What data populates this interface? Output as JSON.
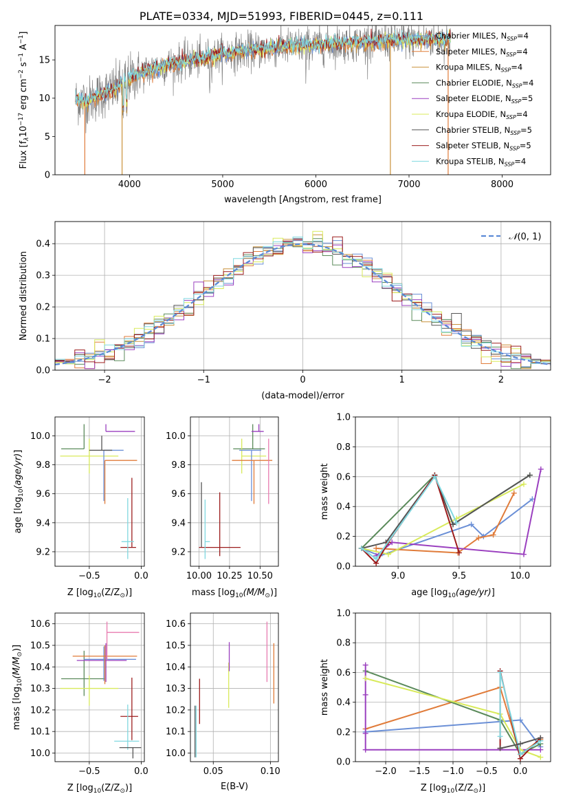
{
  "figure_title": "PLATE=0334, MJD=51993, FIBERID=0445, z=0.111",
  "colors": {
    "chabrier_miles": "#6a8fd6",
    "salpeter_miles": "#e07b39",
    "kroupa_miles": "#c9913a",
    "chabrier_elodie": "#5a8a5a",
    "salpeter_elodie": "#9a3fbf",
    "kroupa_elodie": "#d8ea5a",
    "chabrier_stelib": "#555555",
    "salpeter_stelib": "#9b1b1b",
    "kroupa_stelib": "#7fd8e0",
    "pink": "#e87bb0"
  },
  "chart_data": [
    {
      "id": "spectrum",
      "type": "line",
      "xlabel": "wavelength [Angstrom, rest frame]",
      "ylabel": "Flux [f",
      "xlim": [
        3200,
        8520
      ],
      "ylim": [
        0,
        19.5
      ],
      "xticks": [
        "4000",
        "5000",
        "6000",
        "7000",
        "8000"
      ],
      "yticks": [
        "0",
        "5",
        "10",
        "15"
      ],
      "legend_position": "right",
      "legend": [
        {
          "label": "Chabrier MILES, N",
          "nssp": "=4"
        },
        {
          "label": "Salpeter MILES, N",
          "nssp": "=4"
        },
        {
          "label": "Kroupa MILES, N",
          "nssp": "=4"
        },
        {
          "label": "Chabrier ELODIE, N",
          "nssp": "=4"
        },
        {
          "label": "Salpeter ELODIE, N",
          "nssp": "=5"
        },
        {
          "label": "Kroupa ELODIE, N",
          "nssp": "=4"
        },
        {
          "label": "Chabrier STELIB, N",
          "nssp": "=5"
        },
        {
          "label": "Salpeter STELIB, N",
          "nssp": "=5"
        },
        {
          "label": "Kroupa STELIB, N",
          "nssp": "=4"
        }
      ],
      "continuum": {
        "x": [
          3400,
          3550,
          3700,
          3850,
          4000,
          4200,
          4400,
          4600,
          4800,
          5000,
          5200,
          5400,
          5600,
          5800,
          6000,
          6200,
          6400,
          6600,
          6800,
          7000,
          7200,
          7400,
          7600,
          7800,
          8000,
          8200,
          8400,
          8500
        ],
        "y": [
          9.8,
          9.6,
          10.5,
          11.2,
          12.6,
          13.6,
          14.3,
          14.8,
          15.2,
          15.8,
          16.1,
          16.3,
          16.6,
          16.8,
          16.9,
          17.1,
          17.2,
          17.3,
          17.5,
          17.6,
          17.6,
          17.7,
          17.8,
          17.9,
          18.0,
          18.1,
          18.2,
          18.3
        ]
      },
      "data_range": [
        3420,
        7450
      ]
    },
    {
      "id": "residuals",
      "type": "histogram",
      "xlabel": "(data-model)/error",
      "ylabel": "Normed distribution",
      "xlim": [
        -2.5,
        2.5
      ],
      "ylim": [
        0,
        0.47
      ],
      "xticks": [
        "−2",
        "−1",
        "0",
        "1",
        "2"
      ],
      "yticks": [
        "0.0",
        "0.1",
        "0.2",
        "0.3",
        "0.4"
      ],
      "grid": true,
      "legend_position": "top-right",
      "reference": {
        "label": "(0, 1)",
        "mean": 0,
        "sigma": 1
      }
    },
    {
      "id": "age_vs_Z",
      "type": "errorbar",
      "xlabel": "Z [log",
      "ylabel": "age  [log",
      "xlim": [
        -0.83,
        0.03
      ],
      "ylim": [
        9.1,
        10.13
      ],
      "xticks": [
        "−0.5",
        "0.0"
      ],
      "yticks": [
        "9.2",
        "9.4",
        "9.6",
        "9.8",
        "10.0"
      ],
      "grid": true,
      "points": [
        {
          "x": -0.55,
          "y": 9.91,
          "xerr": [
            0.22,
            0.0
          ],
          "yerr": [
            0.0,
            0.17
          ],
          "color": "chabrier_elodie"
        },
        {
          "x": -0.34,
          "y": 10.03,
          "xerr": [
            0.0,
            0.28
          ],
          "yerr": [
            0.0,
            0.05
          ],
          "color": "salpeter_elodie"
        },
        {
          "x": -0.5,
          "y": 9.86,
          "xerr": [
            0.28,
            0.28
          ],
          "yerr": [
            0.12,
            0.12
          ],
          "color": "kroupa_elodie"
        },
        {
          "x": -0.36,
          "y": 9.9,
          "xerr": [
            0.0,
            0.19
          ],
          "yerr": [
            0.35,
            0.0
          ],
          "color": "chabrier_miles"
        },
        {
          "x": -0.35,
          "y": 9.83,
          "xerr": [
            0.0,
            0.31
          ],
          "yerr": [
            0.3,
            0.0
          ],
          "color": "salpeter_miles"
        },
        {
          "x": -0.38,
          "y": 9.9,
          "xerr": [
            0.12,
            0.1
          ],
          "yerr": [
            0.0,
            0.1
          ],
          "color": "chabrier_stelib"
        },
        {
          "x": -0.09,
          "y": 9.23,
          "xerr": [
            0.11,
            0.04
          ],
          "yerr": [
            0.0,
            0.48
          ],
          "color": "salpeter_stelib"
        },
        {
          "x": -0.13,
          "y": 9.27,
          "xerr": [
            0.06,
            0.06
          ],
          "yerr": [
            0.12,
            0.3
          ],
          "color": "kroupa_stelib"
        }
      ]
    },
    {
      "id": "age_vs_mass",
      "type": "errorbar",
      "xlabel": "mass [log",
      "ylabel": "",
      "xlim": [
        9.93,
        10.65
      ],
      "ylim": [
        9.1,
        10.13
      ],
      "xticks": [
        "10.00",
        "10.25",
        "10.50"
      ],
      "yticks": [
        "9.2",
        "9.4",
        "9.6",
        "9.8",
        "10.0"
      ],
      "grid": true,
      "points": [
        {
          "x": 10.44,
          "y": 9.91,
          "xerr": [
            0.16,
            0.1
          ],
          "yerr": [
            0.0,
            0.17
          ],
          "color": "chabrier_elodie"
        },
        {
          "x": 10.49,
          "y": 10.03,
          "xerr": [
            0.06,
            0.04
          ],
          "yerr": [
            0.0,
            0.05
          ],
          "color": "salpeter_elodie"
        },
        {
          "x": 10.35,
          "y": 9.86,
          "xerr": [
            0.0,
            0.2
          ],
          "yerr": [
            0.12,
            0.12
          ],
          "color": "kroupa_elodie"
        },
        {
          "x": 10.43,
          "y": 9.9,
          "xerr": [
            0.1,
            0.08
          ],
          "yerr": [
            0.35,
            0.0
          ],
          "color": "chabrier_miles"
        },
        {
          "x": 10.45,
          "y": 9.83,
          "xerr": [
            0.18,
            0.15
          ],
          "yerr": [
            0.3,
            0.0
          ],
          "color": "salpeter_miles"
        },
        {
          "x": 10.57,
          "y": 9.83,
          "xerr": [
            0.0,
            0.0
          ],
          "yerr": [
            0.3,
            0.15
          ],
          "color": "pink"
        },
        {
          "x": 10.02,
          "y": 9.23,
          "xerr": [
            0.0,
            0.0
          ],
          "yerr": [
            0.0,
            0.45
          ],
          "color": "chabrier_stelib"
        },
        {
          "x": 10.17,
          "y": 9.23,
          "xerr": [
            0.17,
            0.17
          ],
          "yerr": [
            0.06,
            0.38
          ],
          "color": "salpeter_stelib"
        },
        {
          "x": 10.05,
          "y": 9.27,
          "xerr": [
            0.0,
            0.04
          ],
          "yerr": [
            0.12,
            0.29
          ],
          "color": "kroupa_stelib"
        }
      ]
    },
    {
      "id": "massweight_vs_age",
      "type": "line",
      "xlabel": "age  [log",
      "ylabel": "mass weight",
      "xlim": [
        8.65,
        10.25
      ],
      "ylim": [
        0.0,
        1.0
      ],
      "xticks": [
        "9.0",
        "9.5",
        "10.0"
      ],
      "yticks": [
        "0.0",
        "0.2",
        "0.4",
        "0.6",
        "0.8",
        "1.0"
      ],
      "grid": true,
      "series": [
        {
          "color": "chabrier_miles",
          "x": [
            8.7,
            8.85,
            9.6,
            9.7,
            10.1
          ],
          "y": [
            0.12,
            0.07,
            0.28,
            0.2,
            0.45
          ]
        },
        {
          "color": "salpeter_miles",
          "x": [
            8.82,
            9.49,
            9.66,
            9.78,
            9.95
          ],
          "y": [
            0.12,
            0.09,
            0.19,
            0.21,
            0.49
          ]
        },
        {
          "color": "chabrier_elodie",
          "x": [
            8.7,
            9.3,
            9.45,
            10.08
          ],
          "y": [
            0.12,
            0.61,
            0.28,
            0.61
          ]
        },
        {
          "color": "salpeter_elodie",
          "x": [
            8.82,
            8.95,
            10.03,
            10.17
          ],
          "y": [
            0.07,
            0.16,
            0.08,
            0.65
          ]
        },
        {
          "color": "kroupa_elodie",
          "x": [
            8.7,
            8.92,
            9.48,
            10.03
          ],
          "y": [
            0.12,
            0.08,
            0.32,
            0.55
          ]
        },
        {
          "color": "chabrier_stelib",
          "x": [
            8.7,
            8.9,
            9.3,
            9.45,
            10.08
          ],
          "y": [
            0.12,
            0.16,
            0.61,
            0.28,
            0.61
          ]
        },
        {
          "color": "salpeter_stelib",
          "x": [
            8.7,
            8.82,
            8.92,
            9.3,
            9.5
          ],
          "y": [
            0.12,
            0.02,
            0.16,
            0.61,
            0.09
          ]
        },
        {
          "color": "kroupa_stelib",
          "x": [
            8.7,
            8.82,
            9.3,
            9.48
          ],
          "y": [
            0.12,
            0.05,
            0.6,
            0.29
          ]
        }
      ]
    },
    {
      "id": "mass_vs_Z",
      "type": "errorbar",
      "xlabel": "Z [log",
      "ylabel": "mass [log",
      "xlim": [
        -0.83,
        0.03
      ],
      "ylim": [
        9.96,
        10.65
      ],
      "xticks": [
        "−0.5",
        "0.0"
      ],
      "yticks": [
        "10.0",
        "10.1",
        "10.2",
        "10.3",
        "10.4",
        "10.5",
        "10.6"
      ],
      "grid": true,
      "points": [
        {
          "x": -0.55,
          "y": 10.345,
          "xerr": [
            0.22,
            0.2
          ],
          "yerr": [
            0.08,
            0.13
          ],
          "color": "chabrier_elodie"
        },
        {
          "x": -0.34,
          "y": 10.43,
          "xerr": [
            0.28,
            0.2
          ],
          "yerr": [
            0.1,
            0.08
          ],
          "color": "salpeter_elodie"
        },
        {
          "x": -0.5,
          "y": 10.3,
          "xerr": [
            0.28,
            0.28
          ],
          "yerr": [
            0.08,
            0.06
          ],
          "color": "kroupa_elodie"
        },
        {
          "x": -0.36,
          "y": 10.435,
          "xerr": [
            0.19,
            0.31
          ],
          "yerr": [
            0.1,
            0.06
          ],
          "color": "chabrier_miles"
        },
        {
          "x": -0.35,
          "y": 10.45,
          "xerr": [
            0.31,
            0.31
          ],
          "yerr": [
            0.13,
            0.05
          ],
          "color": "salpeter_miles"
        },
        {
          "x": -0.33,
          "y": 10.56,
          "xerr": [
            0.0,
            0.31
          ],
          "yerr": [
            0.13,
            0.05
          ],
          "color": "pink"
        },
        {
          "x": -0.09,
          "y": 10.17,
          "xerr": [
            0.11,
            0.06
          ],
          "yerr": [
            0.11,
            0.18
          ],
          "color": "salpeter_stelib"
        },
        {
          "x": -0.13,
          "y": 10.055,
          "xerr": [
            0.13,
            0.11
          ],
          "yerr": [
            0.04,
            0.17
          ],
          "color": "kroupa_stelib"
        },
        {
          "x": -0.08,
          "y": 10.025,
          "xerr": [
            0.13,
            0.08
          ],
          "yerr": [
            0.05,
            0.0
          ],
          "color": "chabrier_stelib"
        }
      ]
    },
    {
      "id": "mass_vs_ebv",
      "type": "errorbar",
      "xlabel": "E(B-V)",
      "ylabel": "",
      "xlim": [
        0.03,
        0.107
      ],
      "ylim": [
        9.96,
        10.65
      ],
      "xticks": [
        "0.05",
        "0.10"
      ],
      "yticks": [
        "10.0",
        "10.1",
        "10.2",
        "10.3",
        "10.4",
        "10.5",
        "10.6"
      ],
      "grid": true,
      "points": [
        {
          "x": 0.034,
          "y": 10.1,
          "xerr": [
            0,
            0
          ],
          "yerr": [
            0.12,
            0.12
          ],
          "color": "chabrier_stelib"
        },
        {
          "x": 0.035,
          "y": 10.08,
          "xerr": [
            0,
            0
          ],
          "yerr": [
            0.1,
            0.14
          ],
          "color": "kroupa_stelib"
        },
        {
          "x": 0.038,
          "y": 10.235,
          "xerr": [
            0,
            0
          ],
          "yerr": [
            0.1,
            0.11
          ],
          "color": "salpeter_stelib"
        },
        {
          "x": 0.0635,
          "y": 10.32,
          "xerr": [
            0,
            0
          ],
          "yerr": [
            0.11,
            0.1
          ],
          "color": "kroupa_elodie"
        },
        {
          "x": 0.064,
          "y": 10.44,
          "xerr": [
            0,
            0
          ],
          "yerr": [
            0.06,
            0.075
          ],
          "color": "salpeter_elodie"
        },
        {
          "x": 0.097,
          "y": 10.47,
          "xerr": [
            0,
            0
          ],
          "yerr": [
            0.14,
            0.14
          ],
          "color": "pink"
        },
        {
          "x": 0.103,
          "y": 10.37,
          "xerr": [
            0,
            0
          ],
          "yerr": [
            0.14,
            0.14
          ],
          "color": "salpeter_miles"
        }
      ]
    },
    {
      "id": "massweight_vs_Z",
      "type": "line",
      "xlabel": "Z [log",
      "ylabel": "mass weight",
      "xlim": [
        -2.45,
        0.45
      ],
      "ylim": [
        0.0,
        1.0
      ],
      "xticks": [
        "−2.0",
        "−1.5",
        "−1.0",
        "−0.5",
        "0.0"
      ],
      "yticks": [
        "0.0",
        "0.2",
        "0.4",
        "0.6",
        "0.8",
        "1.0"
      ],
      "grid": true,
      "series": [
        {
          "color": "chabrier_miles",
          "x": [
            -2.3,
            0.0,
            0.3
          ],
          "y": [
            0.2,
            0.28,
            0.1
          ]
        },
        {
          "color": "salpeter_miles",
          "x": [
            -2.3,
            -0.3,
            0.0,
            0.3
          ],
          "y": [
            0.22,
            0.5,
            0.05,
            0.15
          ]
        },
        {
          "color": "chabrier_elodie",
          "x": [
            -2.3,
            -0.3,
            0.0,
            0.3
          ],
          "y": [
            0.61,
            0.28,
            0.05,
            0.12
          ]
        },
        {
          "color": "salpeter_elodie",
          "x": [
            -2.3,
            -2.3,
            -2.3,
            -2.3,
            0.3
          ],
          "y": [
            0.65,
            0.45,
            0.19,
            0.08,
            0.08
          ]
        },
        {
          "color": "kroupa_elodie",
          "x": [
            -2.3,
            -0.3,
            0.0,
            0.3
          ],
          "y": [
            0.56,
            0.32,
            0.08,
            0.03
          ]
        },
        {
          "color": "salpeter_stelib",
          "x": [
            -0.3,
            -0.3,
            0.0,
            0.3
          ],
          "y": [
            0.09,
            0.61,
            0.02,
            0.16
          ]
        },
        {
          "color": "kroupa_stelib",
          "x": [
            -0.3,
            -0.3,
            0.0,
            0.3
          ],
          "y": [
            0.17,
            0.6,
            0.05,
            0.14
          ]
        },
        {
          "color": "chabrier_stelib",
          "x": [
            -0.3,
            0.0,
            0.3
          ],
          "y": [
            0.09,
            0.12,
            0.16
          ]
        }
      ]
    }
  ]
}
